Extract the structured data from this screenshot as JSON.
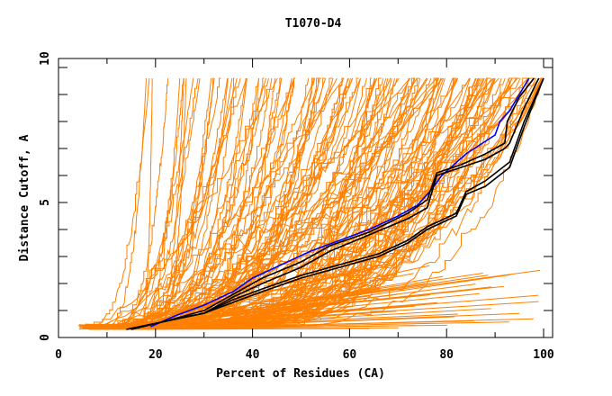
{
  "chart_data": {
    "type": "line",
    "title": "T1070-D4",
    "xlabel": "Percent of Residues (CA)",
    "ylabel": "Distance Cutoff, A",
    "xlim": [
      0,
      100
    ],
    "ylim": [
      0,
      10
    ],
    "x_ticks": [
      0,
      20,
      40,
      60,
      80,
      100
    ],
    "x_tick_labels": [
      "0",
      "20",
      "40",
      "60",
      "80",
      "100"
    ],
    "x_minor_step": 10,
    "y_ticks": [
      0,
      5,
      10
    ],
    "y_tick_labels": [
      "0",
      "5",
      "10"
    ],
    "y_minor_step": 1,
    "grid": false,
    "colors": {
      "models": "#ff8000",
      "highlight_blue": "#0000ff",
      "highlight_black": "#000000",
      "frame": "#000000"
    },
    "highlight_series": [
      {
        "name": "blue",
        "color": "#0000ff",
        "x": [
          19,
          24,
          30,
          36,
          40,
          46,
          52,
          58,
          64,
          70,
          74,
          77,
          79,
          84,
          90,
          91,
          93,
          95,
          97
        ],
        "y": [
          0.4,
          0.8,
          1.2,
          1.7,
          2.2,
          2.7,
          3.2,
          3.6,
          4.0,
          4.5,
          4.9,
          5.5,
          6.0,
          6.8,
          7.5,
          8.0,
          8.4,
          9.0,
          9.6
        ]
      },
      {
        "name": "black-1",
        "color": "#000000",
        "x": [
          15,
          22,
          30,
          36,
          42,
          50,
          56,
          64,
          72,
          76,
          78,
          83,
          88,
          92,
          92.5,
          95,
          98
        ],
        "y": [
          0.3,
          0.6,
          1.0,
          1.6,
          2.2,
          2.8,
          3.4,
          3.9,
          4.6,
          5.1,
          6.1,
          6.4,
          6.8,
          7.2,
          8.0,
          8.9,
          9.6
        ]
      },
      {
        "name": "black-2",
        "color": "#000000",
        "x": [
          15,
          22,
          30,
          36,
          42,
          50,
          56,
          64,
          72,
          76,
          78,
          83,
          88,
          92,
          93,
          96,
          99
        ],
        "y": [
          0.3,
          0.6,
          0.9,
          1.5,
          2.0,
          2.6,
          3.2,
          3.8,
          4.4,
          4.8,
          6.0,
          6.3,
          6.6,
          7.0,
          7.2,
          8.5,
          9.6
        ]
      },
      {
        "name": "black-3",
        "color": "#000000",
        "x": [
          14,
          22,
          30,
          36,
          42,
          50,
          58,
          66,
          72,
          76,
          82,
          84,
          88,
          93,
          96,
          100
        ],
        "y": [
          0.3,
          0.6,
          0.9,
          1.4,
          1.8,
          2.3,
          2.7,
          3.1,
          3.6,
          4.1,
          4.6,
          5.4,
          5.8,
          6.5,
          8.0,
          9.6
        ]
      },
      {
        "name": "black-4",
        "color": "#000000",
        "x": [
          14,
          22,
          30,
          36,
          42,
          50,
          58,
          66,
          72,
          76,
          82,
          84,
          88,
          93,
          96,
          100
        ],
        "y": [
          0.3,
          0.6,
          0.9,
          1.3,
          1.7,
          2.2,
          2.6,
          3.0,
          3.5,
          4.0,
          4.5,
          5.3,
          5.6,
          6.3,
          7.8,
          9.6
        ]
      }
    ],
    "model_series_description_count": 150
  }
}
